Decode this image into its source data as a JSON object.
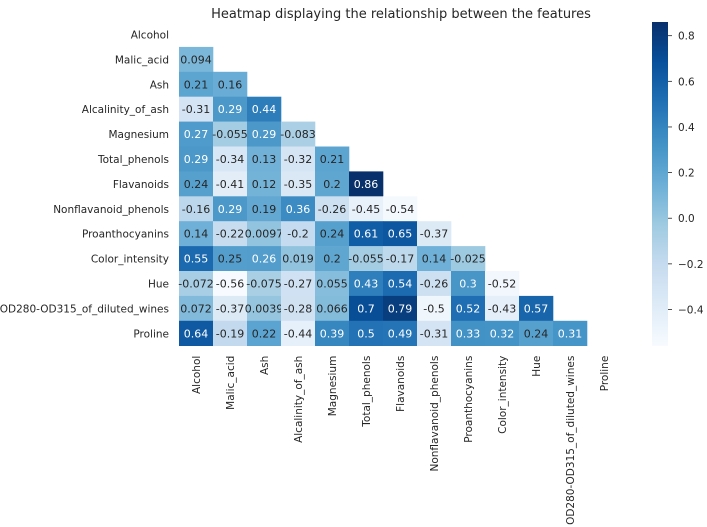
{
  "chart_data": {
    "type": "heatmap",
    "title": "Heatmap displaying the relationship between the features",
    "features": [
      "Alcohol",
      "Malic_acid",
      "Ash",
      "Alcalinity_of_ash",
      "Magnesium",
      "Total_phenols",
      "Flavanoids",
      "Nonflavanoid_phenols",
      "Proanthocyanins",
      "Color_intensity",
      "Hue",
      "OD280-OD315_of_diluted_wines",
      "Proline"
    ],
    "mask": "upper triangle including diagonal",
    "cells": [
      {
        "row": 1,
        "col": 0,
        "value": 0.094,
        "label": "0.094"
      },
      {
        "row": 2,
        "col": 0,
        "value": 0.21,
        "label": "0.21"
      },
      {
        "row": 2,
        "col": 1,
        "value": 0.16,
        "label": "0.16"
      },
      {
        "row": 3,
        "col": 0,
        "value": -0.31,
        "label": "-0.31"
      },
      {
        "row": 3,
        "col": 1,
        "value": 0.29,
        "label": "0.29"
      },
      {
        "row": 3,
        "col": 2,
        "value": 0.44,
        "label": "0.44"
      },
      {
        "row": 4,
        "col": 0,
        "value": 0.27,
        "label": "0.27"
      },
      {
        "row": 4,
        "col": 1,
        "value": -0.055,
        "label": "-0.055"
      },
      {
        "row": 4,
        "col": 2,
        "value": 0.29,
        "label": "0.29"
      },
      {
        "row": 4,
        "col": 3,
        "value": -0.083,
        "label": "-0.083"
      },
      {
        "row": 5,
        "col": 0,
        "value": 0.29,
        "label": "0.29"
      },
      {
        "row": 5,
        "col": 1,
        "value": -0.34,
        "label": "-0.34"
      },
      {
        "row": 5,
        "col": 2,
        "value": 0.13,
        "label": "0.13"
      },
      {
        "row": 5,
        "col": 3,
        "value": -0.32,
        "label": "-0.32"
      },
      {
        "row": 5,
        "col": 4,
        "value": 0.21,
        "label": "0.21"
      },
      {
        "row": 6,
        "col": 0,
        "value": 0.24,
        "label": "0.24"
      },
      {
        "row": 6,
        "col": 1,
        "value": -0.41,
        "label": "-0.41"
      },
      {
        "row": 6,
        "col": 2,
        "value": 0.12,
        "label": "0.12"
      },
      {
        "row": 6,
        "col": 3,
        "value": -0.35,
        "label": "-0.35"
      },
      {
        "row": 6,
        "col": 4,
        "value": 0.2,
        "label": "0.2"
      },
      {
        "row": 6,
        "col": 5,
        "value": 0.86,
        "label": "0.86"
      },
      {
        "row": 7,
        "col": 0,
        "value": -0.16,
        "label": "-0.16"
      },
      {
        "row": 7,
        "col": 1,
        "value": 0.29,
        "label": "0.29"
      },
      {
        "row": 7,
        "col": 2,
        "value": 0.19,
        "label": "0.19"
      },
      {
        "row": 7,
        "col": 3,
        "value": 0.36,
        "label": "0.36"
      },
      {
        "row": 7,
        "col": 4,
        "value": -0.26,
        "label": "-0.26"
      },
      {
        "row": 7,
        "col": 5,
        "value": -0.45,
        "label": "-0.45"
      },
      {
        "row": 7,
        "col": 6,
        "value": -0.54,
        "label": "-0.54"
      },
      {
        "row": 8,
        "col": 0,
        "value": 0.14,
        "label": "0.14"
      },
      {
        "row": 8,
        "col": 1,
        "value": -0.22,
        "label": "-0.22"
      },
      {
        "row": 8,
        "col": 2,
        "value": 0.0097,
        "label": "0.0097"
      },
      {
        "row": 8,
        "col": 3,
        "value": -0.2,
        "label": "-0.2"
      },
      {
        "row": 8,
        "col": 4,
        "value": 0.24,
        "label": "0.24"
      },
      {
        "row": 8,
        "col": 5,
        "value": 0.61,
        "label": "0.61"
      },
      {
        "row": 8,
        "col": 6,
        "value": 0.65,
        "label": "0.65"
      },
      {
        "row": 8,
        "col": 7,
        "value": -0.37,
        "label": "-0.37"
      },
      {
        "row": 9,
        "col": 0,
        "value": 0.55,
        "label": "0.55"
      },
      {
        "row": 9,
        "col": 1,
        "value": 0.25,
        "label": "0.25"
      },
      {
        "row": 9,
        "col": 2,
        "value": 0.26,
        "label": "0.26"
      },
      {
        "row": 9,
        "col": 3,
        "value": 0.019,
        "label": "0.019"
      },
      {
        "row": 9,
        "col": 4,
        "value": 0.2,
        "label": "0.2"
      },
      {
        "row": 9,
        "col": 5,
        "value": -0.055,
        "label": "-0.055"
      },
      {
        "row": 9,
        "col": 6,
        "value": -0.17,
        "label": "-0.17"
      },
      {
        "row": 9,
        "col": 7,
        "value": 0.14,
        "label": "0.14"
      },
      {
        "row": 9,
        "col": 8,
        "value": -0.025,
        "label": "-0.025"
      },
      {
        "row": 10,
        "col": 0,
        "value": -0.072,
        "label": "-0.072"
      },
      {
        "row": 10,
        "col": 1,
        "value": -0.56,
        "label": "-0.56"
      },
      {
        "row": 10,
        "col": 2,
        "value": -0.075,
        "label": "-0.075"
      },
      {
        "row": 10,
        "col": 3,
        "value": -0.27,
        "label": "-0.27"
      },
      {
        "row": 10,
        "col": 4,
        "value": 0.055,
        "label": "0.055"
      },
      {
        "row": 10,
        "col": 5,
        "value": 0.43,
        "label": "0.43"
      },
      {
        "row": 10,
        "col": 6,
        "value": 0.54,
        "label": "0.54"
      },
      {
        "row": 10,
        "col": 7,
        "value": -0.26,
        "label": "-0.26"
      },
      {
        "row": 10,
        "col": 8,
        "value": 0.3,
        "label": "0.3"
      },
      {
        "row": 10,
        "col": 9,
        "value": -0.52,
        "label": "-0.52"
      },
      {
        "row": 11,
        "col": 0,
        "value": 0.072,
        "label": "0.072"
      },
      {
        "row": 11,
        "col": 1,
        "value": -0.37,
        "label": "-0.37"
      },
      {
        "row": 11,
        "col": 2,
        "value": 0.0039,
        "label": "0.0039"
      },
      {
        "row": 11,
        "col": 3,
        "value": -0.28,
        "label": "-0.28"
      },
      {
        "row": 11,
        "col": 4,
        "value": 0.066,
        "label": "0.066"
      },
      {
        "row": 11,
        "col": 5,
        "value": 0.7,
        "label": "0.7"
      },
      {
        "row": 11,
        "col": 6,
        "value": 0.79,
        "label": "0.79"
      },
      {
        "row": 11,
        "col": 7,
        "value": -0.5,
        "label": "-0.5"
      },
      {
        "row": 11,
        "col": 8,
        "value": 0.52,
        "label": "0.52"
      },
      {
        "row": 11,
        "col": 9,
        "value": -0.43,
        "label": "-0.43"
      },
      {
        "row": 11,
        "col": 10,
        "value": 0.57,
        "label": "0.57"
      },
      {
        "row": 12,
        "col": 0,
        "value": 0.64,
        "label": "0.64"
      },
      {
        "row": 12,
        "col": 1,
        "value": -0.19,
        "label": "-0.19"
      },
      {
        "row": 12,
        "col": 2,
        "value": 0.22,
        "label": "0.22"
      },
      {
        "row": 12,
        "col": 3,
        "value": -0.44,
        "label": "-0.44"
      },
      {
        "row": 12,
        "col": 4,
        "value": 0.39,
        "label": "0.39"
      },
      {
        "row": 12,
        "col": 5,
        "value": 0.5,
        "label": "0.5"
      },
      {
        "row": 12,
        "col": 6,
        "value": 0.49,
        "label": "0.49"
      },
      {
        "row": 12,
        "col": 7,
        "value": -0.31,
        "label": "-0.31"
      },
      {
        "row": 12,
        "col": 8,
        "value": 0.33,
        "label": "0.33"
      },
      {
        "row": 12,
        "col": 9,
        "value": 0.32,
        "label": "0.32"
      },
      {
        "row": 12,
        "col": 10,
        "value": 0.24,
        "label": "0.24"
      },
      {
        "row": 12,
        "col": 11,
        "value": 0.31,
        "label": "0.31"
      }
    ],
    "colorbar": {
      "colormap": "Blues",
      "vmin": -0.56,
      "vmax": 0.86,
      "ticks": [
        -0.4,
        -0.2,
        0.0,
        0.2,
        0.4,
        0.6,
        0.8
      ],
      "tick_labels": [
        "−0.4",
        "−0.2",
        "0.0",
        "0.2",
        "0.4",
        "0.6",
        "0.8"
      ]
    },
    "colors": {
      "scale": [
        "#f7fbff",
        "#deebf7",
        "#c6dbef",
        "#9ecae1",
        "#6baed6",
        "#4292c6",
        "#2171b5",
        "#08519c",
        "#08306b"
      ],
      "text_dark": "#262626",
      "text_light": "#ffffff"
    }
  }
}
